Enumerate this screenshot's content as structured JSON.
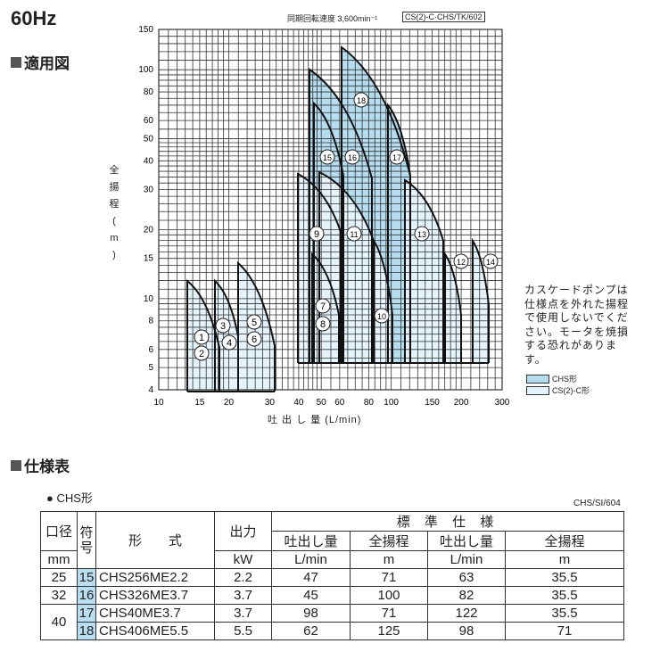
{
  "header": {
    "title": "60Hz",
    "section1": "適用図",
    "section2": "仕様表"
  },
  "chart_data": {
    "type": "area",
    "speed_label": "同期回転速度 3,600min⁻¹",
    "code": "CS(2)-C·CHS/TK/602",
    "xlabel": "吐 出 し 量 (L/min)",
    "ylabel": [
      "全",
      "揚",
      "程",
      "(",
      "m",
      ")"
    ],
    "x_scale": "log",
    "y_scale": "log",
    "xlim": [
      10,
      300
    ],
    "ylim": [
      4,
      150
    ],
    "grid": true,
    "x_ticks": [
      "10",
      "15",
      "20",
      "30",
      "40",
      "50",
      "60",
      "80",
      "100",
      "150",
      "200",
      "300"
    ],
    "y_ticks": [
      "150",
      "100",
      "80",
      "60",
      "50",
      "40",
      "30",
      "20",
      "15",
      "10",
      "8",
      "6",
      "5",
      "4"
    ],
    "region_labels": [
      "1",
      "2",
      "3",
      "4",
      "5",
      "6",
      "7",
      "8",
      "9",
      "10",
      "11",
      "12",
      "13",
      "14",
      "15",
      "16",
      "17",
      "18"
    ],
    "legend": [
      {
        "name": "CHS形",
        "color": "#b5dcef"
      },
      {
        "name": "CS(2)-C形",
        "color": "#e4f3fb"
      }
    ],
    "note": "カスケードポンプは仕様点を外れた揚程で使用しないでください。モータを焼損する恐れがあります。"
  },
  "spec": {
    "bullet": "● CHS形",
    "code": "CHS/SI/604",
    "h": {
      "bore": "口径",
      "sym": "符号",
      "model": "形　　式",
      "out": "出力",
      "std": "標 準 仕 様",
      "flow": "吐出し量",
      "head": "全揚程",
      "mm": "mm",
      "kw": "kW",
      "lmin": "L/min",
      "m": "m"
    },
    "rows": [
      {
        "bore": "25",
        "sym": "15",
        "model": "CHS256ME2.2",
        "kw": "2.2",
        "q1": "47",
        "h1": "71",
        "q2": "63",
        "h2": "35.5"
      },
      {
        "bore": "32",
        "sym": "16",
        "model": "CHS326ME3.7",
        "kw": "3.7",
        "q1": "45",
        "h1": "100",
        "q2": "82",
        "h2": "35.5"
      },
      {
        "bore": "40",
        "sym": "17",
        "model": "CHS40ME3.7",
        "kw": "3.7",
        "q1": "98",
        "h1": "71",
        "q2": "122",
        "h2": "35.5"
      },
      {
        "bore": "",
        "sym": "18",
        "model": "CHS406ME5.5",
        "kw": "5.5",
        "q1": "62",
        "h1": "125",
        "q2": "98",
        "h2": "71"
      }
    ]
  }
}
